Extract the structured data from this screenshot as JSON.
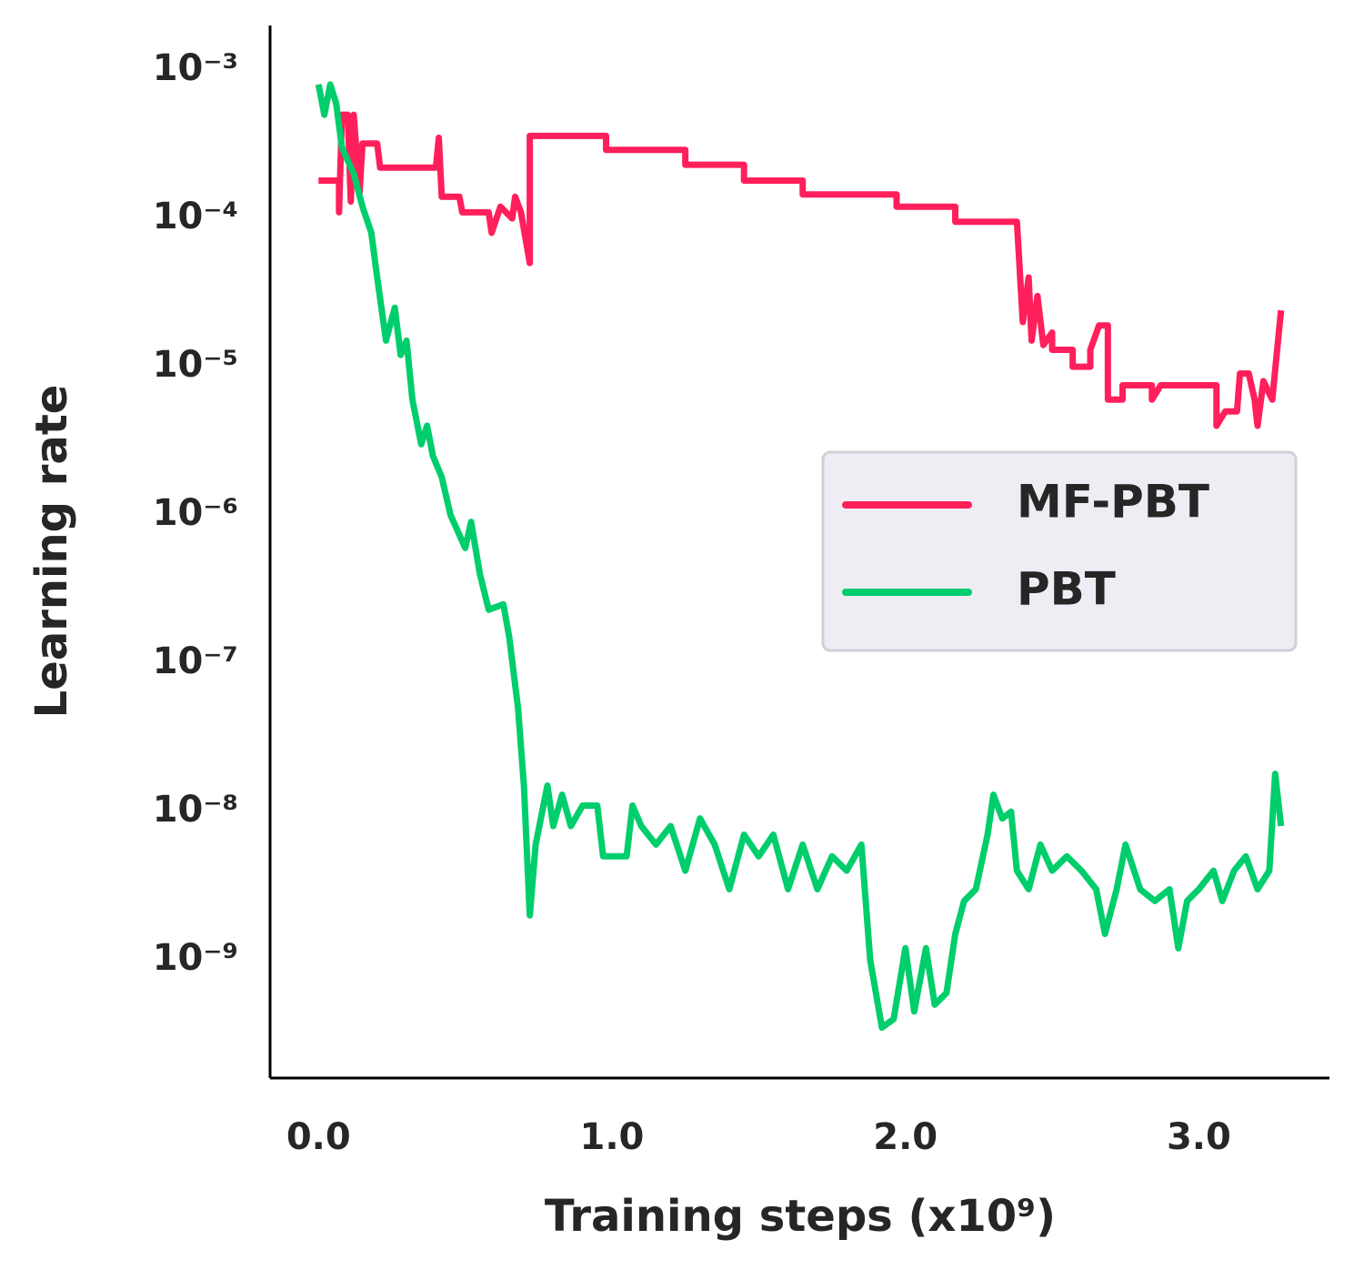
{
  "chart_data": {
    "type": "line",
    "xlabel": "Training steps (x10⁹)",
    "ylabel": "Learning rate",
    "xlim": [
      -0.165,
      3.445
    ],
    "xticks": [
      {
        "value": 0,
        "label": "0.0"
      },
      {
        "value": 1,
        "label": "1.0"
      },
      {
        "value": 2,
        "label": "2.0"
      },
      {
        "value": 3,
        "label": "3.0"
      }
    ],
    "ylim": [
      1.6e-10,
      0.002
    ],
    "yscale": "log",
    "yticks": [
      {
        "value": 0.001,
        "label": "10⁻³"
      },
      {
        "value": 0.0001,
        "label": "10⁻⁴"
      },
      {
        "value": 1e-05,
        "label": "10⁻⁵"
      },
      {
        "value": 1e-06,
        "label": "10⁻⁶"
      },
      {
        "value": 1e-07,
        "label": "10⁻⁷"
      },
      {
        "value": 1e-08,
        "label": "10⁻⁸"
      },
      {
        "value": 1e-09,
        "label": "10⁻⁹"
      }
    ],
    "legend": "center right",
    "series": [
      {
        "name": "MF-PBT",
        "color": "#ff1f5b",
        "x": [
          0.0,
          0.07,
          0.07,
          0.08,
          0.1,
          0.11,
          0.12,
          0.14,
          0.15,
          0.2,
          0.21,
          0.4,
          0.41,
          0.42,
          0.48,
          0.49,
          0.58,
          0.59,
          0.62,
          0.66,
          0.67,
          0.69,
          0.72,
          0.72,
          0.98,
          0.98,
          1.25,
          1.25,
          1.45,
          1.45,
          1.65,
          1.65,
          1.97,
          1.97,
          2.17,
          2.17,
          2.38,
          2.4,
          2.42,
          2.43,
          2.45,
          2.47,
          2.5,
          2.5,
          2.57,
          2.57,
          2.63,
          2.63,
          2.66,
          2.69,
          2.69,
          2.74,
          2.74,
          2.84,
          2.84,
          2.87,
          3.06,
          3.06,
          3.09,
          3.13,
          3.14,
          3.17,
          3.19,
          3.2,
          3.22,
          3.25,
          3.28
        ],
        "values": [
          0.00018,
          0.00018,
          0.00011,
          0.0005,
          0.0005,
          0.00013,
          0.0005,
          0.00015,
          0.00032,
          0.00032,
          0.00022,
          0.00022,
          0.00035,
          0.00014,
          0.00014,
          0.00011,
          0.00011,
          8e-05,
          0.00012,
          0.0001,
          0.00014,
          0.00011,
          5e-05,
          0.00036,
          0.00036,
          0.00029,
          0.00029,
          0.00023,
          0.00023,
          0.00018,
          0.00018,
          0.000145,
          0.000145,
          0.00012,
          0.00012,
          9.5e-05,
          9.5e-05,
          2e-05,
          4e-05,
          1.5e-05,
          3e-05,
          1.4e-05,
          1.7e-05,
          1.3e-05,
          1.3e-05,
          1e-05,
          1e-05,
          1.3e-05,
          1.9e-05,
          1.9e-05,
          6e-06,
          6e-06,
          7.5e-06,
          7.5e-06,
          6e-06,
          7.5e-06,
          7.5e-06,
          4e-06,
          5e-06,
          5e-06,
          9e-06,
          9e-06,
          6e-06,
          4e-06,
          8e-06,
          6e-06,
          2.4e-05
        ]
      },
      {
        "name": "PBT",
        "color": "#00cd6c",
        "x": [
          0.0,
          0.02,
          0.04,
          0.06,
          0.08,
          0.12,
          0.15,
          0.18,
          0.2,
          0.23,
          0.26,
          0.28,
          0.3,
          0.32,
          0.35,
          0.37,
          0.39,
          0.42,
          0.45,
          0.5,
          0.52,
          0.55,
          0.58,
          0.63,
          0.65,
          0.68,
          0.7,
          0.72,
          0.74,
          0.78,
          0.8,
          0.83,
          0.86,
          0.9,
          0.95,
          0.97,
          1.05,
          1.07,
          1.1,
          1.15,
          1.2,
          1.25,
          1.3,
          1.35,
          1.4,
          1.45,
          1.5,
          1.55,
          1.6,
          1.65,
          1.7,
          1.75,
          1.8,
          1.85,
          1.88,
          1.92,
          1.96,
          2.0,
          2.03,
          2.07,
          2.1,
          2.14,
          2.17,
          2.2,
          2.24,
          2.28,
          2.3,
          2.33,
          2.36,
          2.38,
          2.42,
          2.46,
          2.5,
          2.55,
          2.6,
          2.65,
          2.68,
          2.72,
          2.75,
          2.8,
          2.85,
          2.9,
          2.93,
          2.96,
          3.0,
          3.05,
          3.08,
          3.12,
          3.16,
          3.2,
          3.24,
          3.26,
          3.28
        ],
        "values": [
          0.0008,
          0.0005,
          0.0008,
          0.0006,
          0.0003,
          0.0002,
          0.00012,
          8e-05,
          4e-05,
          1.5e-05,
          2.5e-05,
          1.2e-05,
          1.5e-05,
          6e-06,
          3e-06,
          4e-06,
          2.5e-06,
          1.8e-06,
          1e-06,
          6e-07,
          9e-07,
          4e-07,
          2.3e-07,
          2.5e-07,
          1.5e-07,
          5e-08,
          1.5e-08,
          2e-09,
          6e-09,
          1.5e-08,
          8e-09,
          1.3e-08,
          8e-09,
          1.1e-08,
          1.1e-08,
          5e-09,
          5e-09,
          1.1e-08,
          8e-09,
          6e-09,
          8e-09,
          4e-09,
          9e-09,
          6e-09,
          3e-09,
          7e-09,
          5e-09,
          7e-09,
          3e-09,
          6e-09,
          3e-09,
          5e-09,
          4e-09,
          6e-09,
          1e-09,
          3.5e-10,
          4e-10,
          1.2e-09,
          4.5e-10,
          1.2e-09,
          5e-10,
          6e-10,
          1.5e-09,
          2.5e-09,
          3e-09,
          7e-09,
          1.3e-08,
          9e-09,
          1e-08,
          4e-09,
          3e-09,
          6e-09,
          4e-09,
          5e-09,
          4e-09,
          3e-09,
          1.5e-09,
          3e-09,
          6e-09,
          3e-09,
          2.5e-09,
          3e-09,
          1.2e-09,
          2.5e-09,
          3e-09,
          4e-09,
          2.5e-09,
          4e-09,
          5e-09,
          3e-09,
          4e-09,
          1.8e-08,
          8e-09
        ]
      }
    ]
  }
}
